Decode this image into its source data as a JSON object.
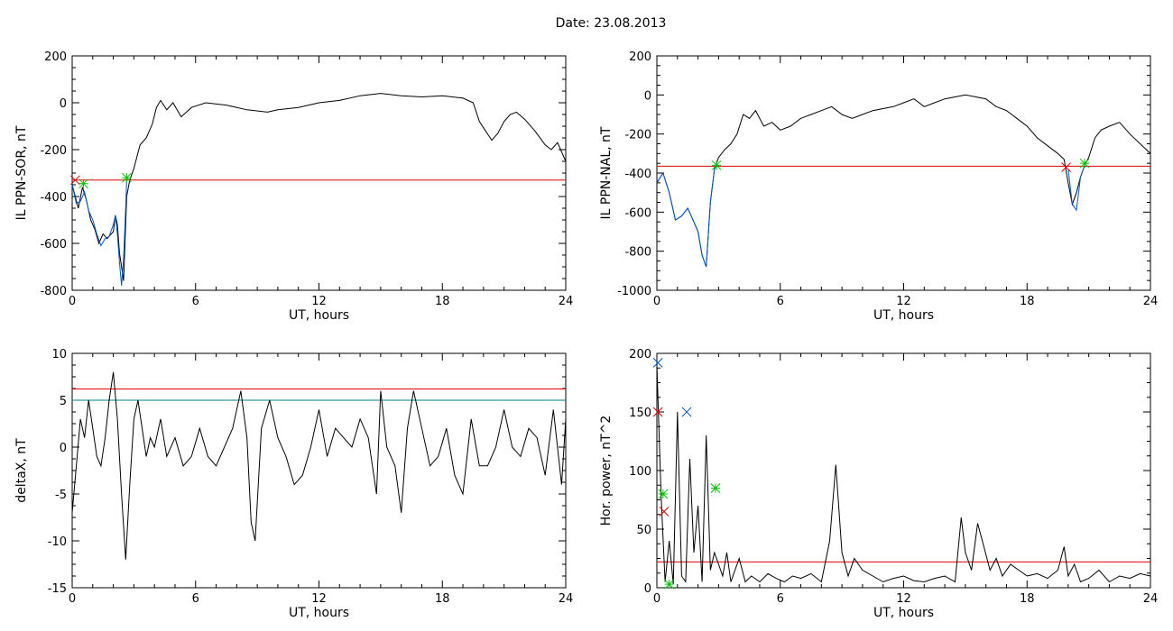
{
  "header": {
    "title": "Date:  23.08.2013"
  },
  "colors": {
    "axis": "#000000",
    "data": "#000000",
    "event": "#0055cc",
    "threshold_red": "#e00000",
    "threshold_teal": "#008080",
    "marker_red": "#e00000",
    "marker_green": "#00c000",
    "marker_blue": "#0055cc"
  },
  "chart_data": [
    {
      "id": "sor",
      "type": "line",
      "xlabel": "UT, hours",
      "ylabel": "IL PPN-SOR, nT",
      "xlim": [
        0,
        24
      ],
      "ylim": [
        -800,
        200
      ],
      "xticks": [
        0,
        6,
        12,
        18,
        24
      ],
      "yticks": [
        -800,
        -600,
        -400,
        -200,
        0,
        200
      ],
      "series": [
        {
          "x": [
            0,
            0.15,
            0.3,
            0.5,
            0.7,
            0.9,
            1.1,
            1.3,
            1.5,
            1.7,
            1.9,
            2.0,
            2.1,
            2.2,
            2.3,
            2.4,
            2.5,
            2.65,
            2.8,
            3.0,
            3.3,
            3.6,
            3.9,
            4.1,
            4.3,
            4.6,
            4.9,
            5.3,
            5.8,
            6.5,
            7.5,
            8.5,
            9.5,
            10,
            11,
            12,
            13,
            14,
            15,
            16,
            17,
            18,
            19,
            19.5,
            19.8,
            20.1,
            20.4,
            20.7,
            21.0,
            21.3,
            21.6,
            22,
            22.5,
            23,
            23.3,
            23.6,
            24
          ],
          "y": [
            -350,
            -400,
            -450,
            -360,
            -420,
            -500,
            -540,
            -600,
            -560,
            -580,
            -560,
            -550,
            -480,
            -520,
            -640,
            -700,
            -760,
            -400,
            -330,
            -280,
            -180,
            -150,
            -90,
            -20,
            10,
            -30,
            0,
            -60,
            -20,
            0,
            -10,
            -30,
            -40,
            -30,
            -20,
            0,
            10,
            30,
            40,
            30,
            25,
            30,
            20,
            0,
            -80,
            -120,
            -160,
            -130,
            -80,
            -50,
            -40,
            -70,
            -120,
            -180,
            -200,
            -170,
            -250
          ]
        },
        {
          "x": [
            0,
            0.2,
            0.4,
            0.6,
            0.8,
            1.0,
            1.2,
            1.4,
            1.6,
            1.8,
            2.0,
            2.1,
            2.2,
            2.3,
            2.4,
            2.5,
            2.6,
            2.65
          ],
          "y": [
            -350,
            -430,
            -420,
            -380,
            -460,
            -500,
            -560,
            -610,
            -580,
            -570,
            -520,
            -480,
            -560,
            -680,
            -780,
            -660,
            -450,
            -330
          ]
        }
      ],
      "threshold_lines": [
        {
          "y": -330,
          "color": "#e00000"
        }
      ],
      "markers": [
        {
          "x": 0.15,
          "y": -330,
          "symbol": "x",
          "color": "#e00000"
        },
        {
          "x": 0.55,
          "y": -345,
          "symbol": "*",
          "color": "#00c000"
        },
        {
          "x": 2.65,
          "y": -320,
          "symbol": "*",
          "color": "#00c000"
        }
      ]
    },
    {
      "id": "nal",
      "type": "line",
      "xlabel": "UT, hours",
      "ylabel": "IL PPN-NAL, nT",
      "xlim": [
        0,
        24
      ],
      "ylim": [
        -1000,
        200
      ],
      "xticks": [
        0,
        6,
        12,
        18,
        24
      ],
      "yticks": [
        -1000,
        -800,
        -600,
        -400,
        -200,
        0,
        200
      ],
      "series": [
        {
          "x": [
            0,
            0.3,
            0.6,
            0.9,
            1.2,
            1.5,
            1.8,
            2.0,
            2.2,
            2.4,
            2.6,
            2.8,
            3.0,
            3.3,
            3.6,
            3.9,
            4.2,
            4.5,
            4.8,
            5.2,
            5.6,
            6,
            6.5,
            7,
            7.5,
            8,
            8.5,
            9,
            9.5,
            10,
            10.5,
            11,
            11.5,
            12,
            12.5,
            13,
            13.5,
            14,
            14.5,
            15,
            15.5,
            16,
            16.5,
            17,
            17.5,
            18,
            18.5,
            19,
            19.5,
            19.8,
            20.0,
            20.2,
            20.4,
            20.6,
            20.8,
            21.0,
            21.3,
            21.6,
            22,
            22.5,
            23,
            23.5,
            24
          ],
          "y": [
            -450,
            -400,
            -500,
            -640,
            -620,
            -580,
            -650,
            -700,
            -820,
            -880,
            -550,
            -380,
            -320,
            -280,
            -250,
            -200,
            -100,
            -120,
            -80,
            -160,
            -140,
            -180,
            -160,
            -120,
            -100,
            -80,
            -60,
            -100,
            -120,
            -100,
            -80,
            -70,
            -60,
            -40,
            -20,
            -60,
            -40,
            -20,
            -10,
            0,
            -10,
            -20,
            -60,
            -80,
            -120,
            -160,
            -220,
            -260,
            -300,
            -330,
            -450,
            -560,
            -500,
            -420,
            -360,
            -320,
            -220,
            -180,
            -160,
            -140,
            -200,
            -250,
            -300
          ]
        },
        {
          "x": [
            0,
            0.3,
            0.6,
            0.9,
            1.2,
            1.5,
            1.8,
            2.0,
            2.2,
            2.4,
            2.6,
            2.8,
            2.9
          ],
          "y": [
            -450,
            -400,
            -500,
            -640,
            -620,
            -580,
            -650,
            -700,
            -820,
            -880,
            -550,
            -380,
            -360
          ]
        },
        {
          "x": [
            20.0,
            20.2,
            20.4,
            20.6,
            20.8
          ],
          "y": [
            -380,
            -560,
            -590,
            -420,
            -360
          ]
        }
      ],
      "threshold_lines": [
        {
          "y": -365,
          "color": "#e00000"
        }
      ],
      "markers": [
        {
          "x": 2.9,
          "y": -360,
          "symbol": "*",
          "color": "#00c000"
        },
        {
          "x": 19.9,
          "y": -370,
          "symbol": "x",
          "color": "#e00000"
        },
        {
          "x": 20.8,
          "y": -350,
          "symbol": "*",
          "color": "#00c000"
        }
      ]
    },
    {
      "id": "deltax",
      "type": "line",
      "xlabel": "UT, hours",
      "ylabel": "deltaX, nT",
      "xlim": [
        0,
        24
      ],
      "ylim": [
        -15,
        10
      ],
      "xticks": [
        0,
        6,
        12,
        18,
        24
      ],
      "yticks": [
        -15,
        -10,
        -5,
        0,
        5,
        10
      ],
      "series": [
        {
          "x": [
            0,
            0.2,
            0.4,
            0.6,
            0.8,
            1.0,
            1.2,
            1.4,
            1.6,
            1.8,
            2.0,
            2.2,
            2.4,
            2.6,
            2.8,
            3.0,
            3.2,
            3.4,
            3.6,
            3.8,
            4.0,
            4.3,
            4.6,
            5.0,
            5.4,
            5.8,
            6.2,
            6.6,
            7.0,
            7.4,
            7.8,
            8.2,
            8.5,
            8.7,
            8.9,
            9.2,
            9.6,
            10.0,
            10.4,
            10.8,
            11.2,
            11.6,
            12.0,
            12.4,
            12.8,
            13.2,
            13.6,
            14.0,
            14.4,
            14.8,
            15.0,
            15.3,
            15.7,
            16.0,
            16.3,
            16.6,
            17.0,
            17.4,
            17.8,
            18.2,
            18.6,
            19.0,
            19.4,
            19.8,
            20.2,
            20.6,
            21.0,
            21.4,
            21.8,
            22.2,
            22.6,
            23.0,
            23.4,
            23.8,
            24
          ],
          "y": [
            -7,
            -2,
            3,
            1,
            5,
            2,
            -1,
            -2,
            1,
            5,
            8,
            3,
            -5,
            -12,
            -4,
            3,
            5,
            2,
            -1,
            1,
            0,
            3,
            -1,
            1,
            -2,
            -1,
            2,
            -1,
            -2,
            0,
            2,
            6,
            1,
            -8,
            -10,
            2,
            5,
            1,
            -1,
            -4,
            -3,
            0,
            4,
            -1,
            2,
            1,
            0,
            3,
            1,
            -5,
            6,
            0,
            -2,
            -7,
            2,
            6,
            2,
            -2,
            -1,
            2,
            -3,
            -5,
            3,
            -2,
            -2,
            0,
            4,
            0,
            -1,
            2,
            1,
            -3,
            4,
            -4,
            3
          ]
        }
      ],
      "threshold_lines": [
        {
          "y": 6.2,
          "color": "#e00000"
        },
        {
          "y": 5.0,
          "color": "#008080"
        }
      ],
      "markers": []
    },
    {
      "id": "power",
      "type": "line",
      "xlabel": "UT, hours",
      "ylabel": "Hor. power, nT^2",
      "xlim": [
        0,
        24
      ],
      "ylim": [
        0,
        200
      ],
      "xticks": [
        0,
        6,
        12,
        18,
        24
      ],
      "yticks": [
        0,
        50,
        100,
        150,
        200
      ],
      "series": [
        {
          "x": [
            0,
            0.2,
            0.4,
            0.6,
            0.8,
            1.0,
            1.2,
            1.4,
            1.6,
            1.8,
            2.0,
            2.2,
            2.4,
            2.6,
            2.8,
            3.0,
            3.2,
            3.4,
            3.6,
            3.8,
            4.0,
            4.3,
            4.6,
            5.0,
            5.4,
            5.8,
            6.2,
            6.6,
            7.0,
            7.5,
            8.0,
            8.4,
            8.7,
            9.0,
            9.3,
            9.6,
            10.0,
            10.5,
            11,
            11.5,
            12,
            12.5,
            13,
            13.5,
            14,
            14.5,
            14.8,
            15.0,
            15.3,
            15.6,
            15.9,
            16.2,
            16.5,
            16.8,
            17.2,
            17.6,
            18,
            18.5,
            19,
            19.5,
            19.8,
            20.0,
            20.3,
            20.6,
            21,
            21.5,
            22,
            22.5,
            23,
            23.5,
            24
          ],
          "y": [
            190,
            80,
            5,
            40,
            3,
            150,
            10,
            5,
            110,
            30,
            70,
            5,
            130,
            15,
            30,
            20,
            10,
            30,
            5,
            15,
            25,
            5,
            10,
            5,
            12,
            8,
            5,
            10,
            8,
            12,
            5,
            40,
            105,
            30,
            10,
            25,
            15,
            10,
            5,
            8,
            10,
            6,
            5,
            8,
            10,
            5,
            60,
            30,
            15,
            55,
            35,
            15,
            25,
            10,
            20,
            15,
            10,
            12,
            8,
            15,
            35,
            10,
            20,
            5,
            8,
            15,
            5,
            10,
            8,
            12,
            10
          ]
        }
      ],
      "threshold_lines": [
        {
          "y": 22,
          "color": "#e00000"
        }
      ],
      "markers": [
        {
          "x": 0.05,
          "y": 192,
          "symbol": "x",
          "color": "#0055cc"
        },
        {
          "x": 0.05,
          "y": 150,
          "symbol": "x",
          "color": "#e00000"
        },
        {
          "x": 0.3,
          "y": 80,
          "symbol": "*",
          "color": "#00c000"
        },
        {
          "x": 0.35,
          "y": 65,
          "symbol": "x",
          "color": "#e00000"
        },
        {
          "x": 1.45,
          "y": 150,
          "symbol": "x",
          "color": "#0055cc"
        },
        {
          "x": 2.85,
          "y": 85,
          "symbol": "*",
          "color": "#00c000"
        },
        {
          "x": 0.6,
          "y": 3,
          "symbol": "*",
          "color": "#00c000"
        }
      ]
    }
  ]
}
